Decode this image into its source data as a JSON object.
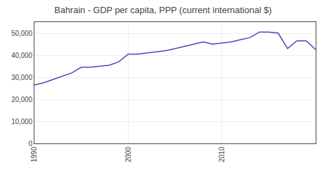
{
  "chart_data": {
    "type": "line",
    "title": "Bahrain - GDP per capita, PPP (current international $)",
    "x": [
      1990,
      1991,
      1992,
      1993,
      1994,
      1995,
      1996,
      1997,
      1998,
      1999,
      2000,
      2001,
      2002,
      2003,
      2004,
      2005,
      2006,
      2007,
      2008,
      2009,
      2010,
      2011,
      2012,
      2013,
      2014,
      2015,
      2016,
      2017,
      2018,
      2019,
      2020
    ],
    "values": [
      26500,
      27500,
      29000,
      30500,
      32000,
      34500,
      34500,
      35000,
      35500,
      37000,
      40500,
      40500,
      41000,
      41500,
      42000,
      43000,
      44000,
      45000,
      46000,
      45000,
      45500,
      46000,
      47000,
      48000,
      50500,
      50500,
      50000,
      43000,
      46500,
      46500,
      42500
    ],
    "color": "#4444bb",
    "xlim": [
      1990,
      2020
    ],
    "ylim": [
      0,
      55000
    ],
    "xticks": [
      1990,
      2000,
      2010
    ],
    "yticks": [
      0,
      {
        "value": 10000,
        "label": "10,000"
      },
      {
        "value": 20000,
        "label": "20,000"
      },
      {
        "value": 30000,
        "label": "30,000"
      },
      {
        "value": 40000,
        "label": "40,000"
      },
      {
        "value": 50000,
        "label": "50,000"
      }
    ],
    "grid": true
  }
}
